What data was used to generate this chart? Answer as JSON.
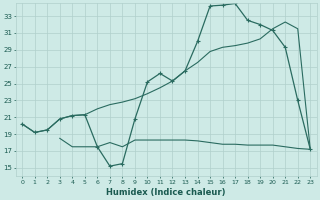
{
  "xlabel": "Humidex (Indice chaleur)",
  "bg_color": "#ceeae6",
  "line_color": "#2a6b60",
  "grid_color": "#b0d0cc",
  "x_ticks": [
    0,
    1,
    2,
    3,
    4,
    5,
    6,
    7,
    8,
    9,
    10,
    11,
    12,
    13,
    14,
    15,
    16,
    17,
    18,
    19,
    20,
    21,
    22,
    23
  ],
  "y_ticks": [
    15,
    17,
    19,
    21,
    23,
    25,
    27,
    29,
    31,
    33
  ],
  "xlim": [
    -0.5,
    23.5
  ],
  "ylim": [
    14.0,
    34.5
  ],
  "line1_x": [
    0,
    1,
    2,
    3,
    4,
    5,
    6,
    7,
    8,
    9,
    10,
    11,
    12,
    13,
    14,
    15,
    16,
    17,
    18,
    19,
    20,
    21,
    22,
    23
  ],
  "line1_y": [
    20.2,
    19.2,
    19.5,
    20.8,
    21.2,
    21.3,
    17.5,
    15.2,
    15.5,
    20.8,
    25.2,
    26.2,
    25.3,
    26.5,
    30.0,
    34.2,
    34.3,
    34.5,
    32.5,
    32.0,
    31.3,
    29.3,
    23.0,
    17.2
  ],
  "line2_x": [
    0,
    1,
    2,
    3,
    4,
    5,
    6,
    7,
    8,
    9,
    10,
    11,
    12,
    13,
    14,
    15,
    16,
    17,
    18,
    19,
    20,
    21,
    22,
    23
  ],
  "line2_y": [
    20.2,
    19.2,
    19.5,
    20.8,
    21.2,
    21.3,
    22.0,
    22.5,
    22.8,
    23.2,
    23.8,
    24.5,
    25.3,
    26.5,
    27.5,
    28.8,
    29.3,
    29.5,
    29.8,
    30.3,
    31.5,
    32.3,
    31.5,
    17.2
  ],
  "line3_x": [
    3,
    4,
    5,
    6,
    7,
    8,
    9,
    10,
    11,
    12,
    13,
    14,
    15,
    16,
    17,
    18,
    19,
    20,
    21,
    22,
    23
  ],
  "line3_y": [
    18.5,
    17.5,
    17.5,
    17.5,
    18.0,
    17.5,
    18.3,
    18.3,
    18.3,
    18.3,
    18.3,
    18.2,
    18.0,
    17.8,
    17.8,
    17.7,
    17.7,
    17.7,
    17.5,
    17.3,
    17.2
  ]
}
